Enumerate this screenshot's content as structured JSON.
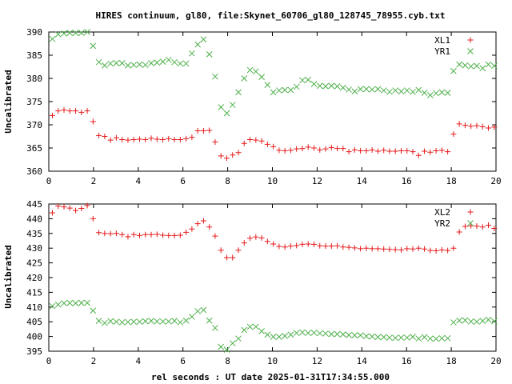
{
  "title": "HIRES continuum, gl80, file:Skynet_60706_gl80_128745_78955.cyb.txt",
  "xlabel": "rel seconds : UT date 2025-01-31T17:34:55.000",
  "colors": {
    "red": "#e41a1c",
    "green": "#4daf4a"
  },
  "chart_data": [
    {
      "type": "scatter",
      "ylabel": "Uncalibrated",
      "xlim": [
        0,
        20
      ],
      "ylim": [
        360,
        390
      ],
      "x_ticks": [
        "0",
        "2",
        "4",
        "6",
        "8",
        "10",
        "12",
        "14",
        "16",
        "18",
        "20"
      ],
      "y_ticks": [
        "360",
        "365",
        "370",
        "375",
        "380",
        "385",
        "390"
      ],
      "legend_position": "top-right",
      "grid": false,
      "series": [
        {
          "name": "XL1",
          "marker": "plus",
          "color": "#e41a1c",
          "x": [
            0.16,
            0.42,
            0.68,
            0.94,
            1.2,
            1.46,
            1.72,
            1.98,
            2.24,
            2.5,
            2.76,
            3.02,
            3.28,
            3.54,
            3.8,
            4.06,
            4.32,
            4.58,
            4.84,
            5.1,
            5.36,
            5.62,
            5.88,
            6.14,
            6.4,
            6.66,
            6.92,
            7.18,
            7.44,
            7.7,
            7.96,
            8.22,
            8.48,
            8.74,
            9.0,
            9.26,
            9.52,
            9.78,
            10.04,
            10.3,
            10.56,
            10.82,
            11.08,
            11.34,
            11.6,
            11.86,
            12.12,
            12.38,
            12.64,
            12.9,
            13.16,
            13.42,
            13.68,
            13.94,
            14.2,
            14.46,
            14.72,
            14.98,
            15.24,
            15.5,
            15.76,
            16.02,
            16.28,
            16.54,
            16.8,
            17.06,
            17.32,
            17.58,
            17.84,
            18.1,
            18.36,
            18.62,
            18.88,
            19.14,
            19.4,
            19.66,
            19.92
          ],
          "y": [
            372.0,
            373.0,
            373.2,
            373.0,
            373.0,
            372.7,
            373.0,
            370.7,
            367.7,
            367.5,
            366.7,
            367.2,
            366.8,
            366.7,
            366.8,
            366.9,
            366.8,
            367.1,
            366.9,
            366.8,
            367.0,
            366.8,
            366.8,
            367.0,
            367.3,
            368.7,
            368.7,
            368.8,
            366.3,
            363.3,
            362.8,
            363.5,
            364.0,
            366.0,
            366.8,
            366.7,
            366.5,
            365.8,
            365.3,
            364.5,
            364.4,
            364.5,
            364.8,
            364.9,
            365.2,
            365.0,
            364.6,
            364.8,
            365.1,
            364.9,
            364.9,
            364.2,
            364.6,
            364.4,
            364.4,
            364.6,
            364.3,
            364.5,
            364.3,
            364.3,
            364.4,
            364.4,
            364.2,
            363.4,
            364.3,
            364.1,
            364.4,
            364.5,
            364.2,
            368.0,
            370.2,
            369.9,
            369.7,
            369.8,
            369.6,
            369.3,
            369.5
          ]
        },
        {
          "name": "YR1",
          "marker": "cross",
          "color": "#4daf4a",
          "x": [
            0.16,
            0.42,
            0.68,
            0.94,
            1.2,
            1.46,
            1.72,
            1.98,
            2.24,
            2.5,
            2.76,
            3.02,
            3.28,
            3.54,
            3.8,
            4.06,
            4.32,
            4.58,
            4.84,
            5.1,
            5.36,
            5.62,
            5.88,
            6.14,
            6.4,
            6.66,
            6.92,
            7.18,
            7.44,
            7.7,
            7.96,
            8.22,
            8.48,
            8.74,
            9.0,
            9.26,
            9.52,
            9.78,
            10.04,
            10.3,
            10.56,
            10.82,
            11.08,
            11.34,
            11.6,
            11.86,
            12.12,
            12.38,
            12.64,
            12.9,
            13.16,
            13.42,
            13.68,
            13.94,
            14.2,
            14.46,
            14.72,
            14.98,
            15.24,
            15.5,
            15.76,
            16.02,
            16.28,
            16.54,
            16.8,
            17.06,
            17.32,
            17.58,
            17.84,
            18.1,
            18.36,
            18.62,
            18.88,
            19.14,
            19.4,
            19.66,
            19.92
          ],
          "y": [
            388.5,
            389.5,
            389.7,
            389.8,
            389.8,
            389.8,
            390.0,
            387.0,
            383.5,
            382.8,
            383.2,
            383.3,
            383.3,
            382.8,
            382.9,
            383.0,
            382.9,
            383.3,
            383.4,
            383.6,
            384.0,
            383.5,
            383.2,
            383.2,
            385.4,
            387.3,
            388.4,
            385.2,
            380.4,
            373.8,
            372.5,
            374.3,
            377.0,
            380.0,
            381.8,
            381.5,
            380.3,
            378.6,
            377.0,
            377.4,
            377.5,
            377.5,
            378.2,
            379.6,
            379.7,
            378.8,
            378.4,
            378.3,
            378.4,
            378.3,
            378.0,
            377.6,
            377.2,
            377.7,
            377.7,
            377.6,
            377.7,
            377.4,
            377.1,
            377.4,
            377.2,
            377.4,
            377.1,
            377.5,
            376.9,
            376.4,
            376.8,
            377.0,
            376.9,
            381.6,
            383.0,
            382.8,
            382.6,
            382.7,
            382.2,
            383.0,
            382.7
          ]
        }
      ]
    },
    {
      "type": "scatter",
      "ylabel": "Uncalibrated",
      "xlim": [
        0,
        20
      ],
      "ylim": [
        395,
        445
      ],
      "x_ticks": [
        "0",
        "2",
        "4",
        "6",
        "8",
        "10",
        "12",
        "14",
        "16",
        "18",
        "20"
      ],
      "y_ticks": [
        "395",
        "400",
        "405",
        "410",
        "415",
        "420",
        "425",
        "430",
        "435",
        "440",
        "445"
      ],
      "legend_position": "top-right",
      "grid": false,
      "series": [
        {
          "name": "XL2",
          "marker": "plus",
          "color": "#e41a1c",
          "x": [
            0.16,
            0.42,
            0.68,
            0.94,
            1.2,
            1.46,
            1.72,
            1.98,
            2.24,
            2.5,
            2.76,
            3.02,
            3.28,
            3.54,
            3.8,
            4.06,
            4.32,
            4.58,
            4.84,
            5.1,
            5.36,
            5.62,
            5.88,
            6.14,
            6.4,
            6.66,
            6.92,
            7.18,
            7.44,
            7.7,
            7.96,
            8.22,
            8.48,
            8.74,
            9.0,
            9.26,
            9.52,
            9.78,
            10.04,
            10.3,
            10.56,
            10.82,
            11.08,
            11.34,
            11.6,
            11.86,
            12.12,
            12.38,
            12.64,
            12.9,
            13.16,
            13.42,
            13.68,
            13.94,
            14.2,
            14.46,
            14.72,
            14.98,
            15.24,
            15.5,
            15.76,
            16.02,
            16.28,
            16.54,
            16.8,
            17.06,
            17.32,
            17.58,
            17.84,
            18.1,
            18.36,
            18.62,
            18.88,
            19.14,
            19.4,
            19.66,
            19.92
          ],
          "y": [
            442.0,
            444.3,
            444.0,
            443.6,
            442.8,
            443.5,
            444.5,
            440.0,
            435.3,
            435.0,
            434.9,
            435.0,
            434.6,
            433.9,
            434.6,
            434.3,
            434.6,
            434.6,
            434.7,
            434.4,
            434.3,
            434.3,
            434.4,
            435.4,
            436.5,
            438.3,
            439.3,
            437.2,
            434.1,
            429.3,
            426.8,
            426.8,
            429.3,
            431.8,
            433.4,
            433.8,
            433.5,
            432.3,
            431.4,
            430.6,
            430.4,
            430.7,
            430.9,
            431.3,
            431.4,
            431.3,
            430.8,
            430.7,
            430.7,
            430.8,
            430.4,
            430.3,
            430.1,
            429.8,
            430.0,
            429.8,
            429.8,
            429.7,
            429.6,
            429.5,
            429.4,
            429.8,
            429.7,
            430.0,
            429.7,
            429.2,
            429.1,
            429.4,
            429.2,
            430.0,
            435.5,
            437.4,
            437.6,
            437.5,
            437.2,
            437.8,
            436.7
          ]
        },
        {
          "name": "YR2",
          "marker": "cross",
          "color": "#4daf4a",
          "x": [
            0.16,
            0.42,
            0.68,
            0.94,
            1.2,
            1.46,
            1.72,
            1.98,
            2.24,
            2.5,
            2.76,
            3.02,
            3.28,
            3.54,
            3.8,
            4.06,
            4.32,
            4.58,
            4.84,
            5.1,
            5.36,
            5.62,
            5.88,
            6.14,
            6.4,
            6.66,
            6.92,
            7.18,
            7.44,
            7.7,
            7.96,
            8.22,
            8.48,
            8.74,
            9.0,
            9.26,
            9.52,
            9.78,
            10.04,
            10.3,
            10.56,
            10.82,
            11.08,
            11.34,
            11.6,
            11.86,
            12.12,
            12.38,
            12.64,
            12.9,
            13.16,
            13.42,
            13.68,
            13.94,
            14.2,
            14.46,
            14.72,
            14.98,
            15.24,
            15.5,
            15.76,
            16.02,
            16.28,
            16.54,
            16.8,
            17.06,
            17.32,
            17.58,
            17.84,
            18.1,
            18.36,
            18.62,
            18.88,
            19.14,
            19.4,
            19.66,
            19.92
          ],
          "y": [
            410.3,
            410.8,
            411.3,
            411.4,
            411.3,
            411.4,
            411.4,
            408.8,
            405.3,
            404.6,
            405.2,
            405.0,
            404.8,
            404.9,
            405.0,
            405.0,
            405.2,
            405.3,
            405.1,
            405.1,
            405.1,
            405.3,
            404.8,
            405.4,
            406.7,
            408.6,
            409.0,
            405.4,
            402.9,
            396.5,
            395.5,
            397.7,
            399.3,
            402.2,
            403.3,
            403.3,
            401.8,
            400.6,
            399.9,
            399.9,
            400.2,
            400.6,
            401.2,
            401.4,
            401.2,
            401.3,
            401.1,
            401.0,
            400.8,
            400.8,
            400.7,
            400.5,
            400.4,
            400.4,
            400.1,
            400.0,
            399.8,
            399.8,
            399.6,
            399.5,
            399.6,
            399.6,
            399.9,
            399.3,
            399.8,
            399.3,
            399.2,
            399.4,
            399.4,
            404.8,
            405.4,
            405.5,
            405.1,
            405.0,
            405.3,
            405.7,
            405.2
          ]
        }
      ]
    }
  ]
}
